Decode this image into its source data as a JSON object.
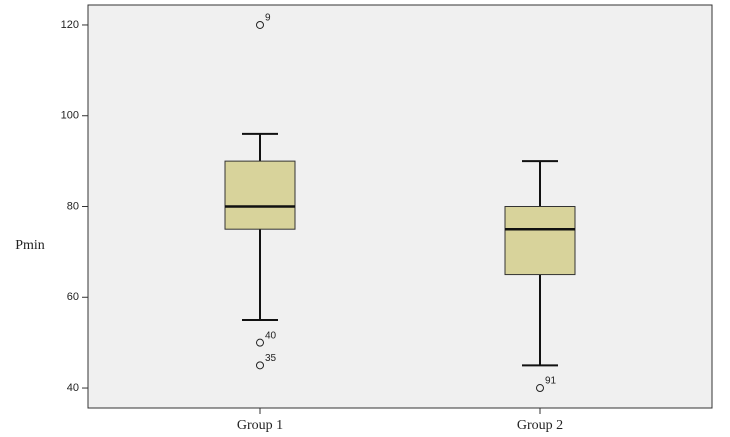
{
  "chart_data": {
    "type": "box",
    "y_label": "Pmin",
    "categories": [
      "Group 1",
      "Group 2"
    ],
    "color": "#d8d39b",
    "boxes": [
      {
        "whisker_low": 55,
        "q1": 75,
        "median": 80,
        "q3": 90,
        "whisker_high": 96,
        "outliers": [
          {
            "value": 120,
            "label": "9"
          },
          {
            "value": 50,
            "label": "40"
          },
          {
            "value": 45,
            "label": "35"
          }
        ]
      },
      {
        "whisker_low": 45,
        "q1": 65,
        "median": 75,
        "q3": 80,
        "whisker_high": 90,
        "outliers": [
          {
            "value": 40,
            "label": "91"
          }
        ]
      }
    ],
    "ylim": [
      35.6,
      124.4
    ],
    "yticks": [
      40,
      60,
      80,
      100,
      120
    ],
    "grid": false
  }
}
